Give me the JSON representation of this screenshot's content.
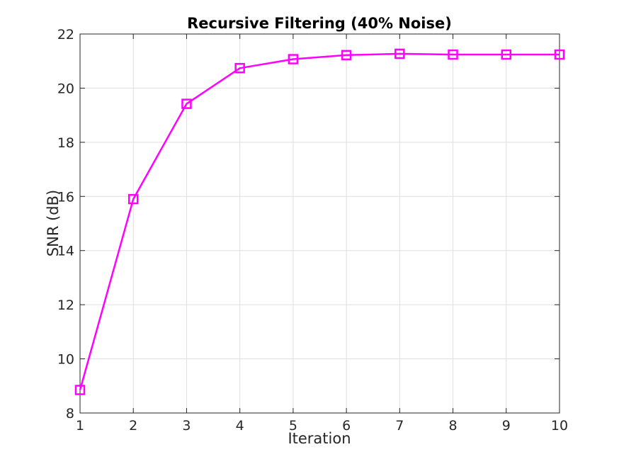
{
  "chart_data": {
    "type": "line",
    "title": "Recursive Filtering (40% Noise)",
    "xlabel": "Iteration",
    "ylabel": "SNR (dB)",
    "xlim": [
      1,
      10
    ],
    "ylim": [
      8,
      22
    ],
    "xticks": [
      1,
      2,
      3,
      4,
      5,
      6,
      7,
      8,
      9,
      10
    ],
    "yticks": [
      8,
      10,
      12,
      14,
      16,
      18,
      20,
      22
    ],
    "grid": true,
    "series": [
      {
        "color": "#ff00ff",
        "marker": "square",
        "x": [
          1,
          2,
          3,
          4,
          5,
          6,
          7,
          8,
          9,
          10
        ],
        "y": [
          8.85,
          15.9,
          19.42,
          20.74,
          21.07,
          21.22,
          21.27,
          21.24,
          21.24,
          21.24
        ]
      }
    ]
  }
}
